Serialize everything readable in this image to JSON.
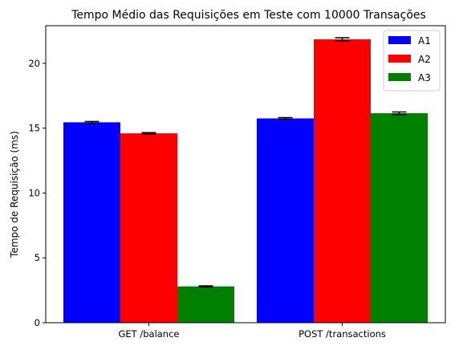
{
  "chart_data": {
    "type": "bar",
    "title": "Tempo Médio das Requisições em Teste com 10000 Transações",
    "xlabel": "",
    "ylabel": "Tempo de Requisição (ms)",
    "categories": [
      "GET /balance",
      "POST /transactions"
    ],
    "series": [
      {
        "name": "A1",
        "color": "#0000ff",
        "values": [
          15.45,
          15.75
        ],
        "errors": [
          0.06,
          0.06
        ]
      },
      {
        "name": "A2",
        "color": "#ff0000",
        "values": [
          14.6,
          21.85
        ],
        "errors": [
          0.05,
          0.12
        ]
      },
      {
        "name": "A3",
        "color": "#008000",
        "values": [
          2.8,
          16.15
        ],
        "errors": [
          0.04,
          0.1
        ]
      }
    ],
    "ylim": [
      0,
      22.9
    ],
    "yticks": [
      0,
      5,
      10,
      15,
      20
    ],
    "grid": false,
    "legend": "top-right",
    "error_bars": true
  }
}
